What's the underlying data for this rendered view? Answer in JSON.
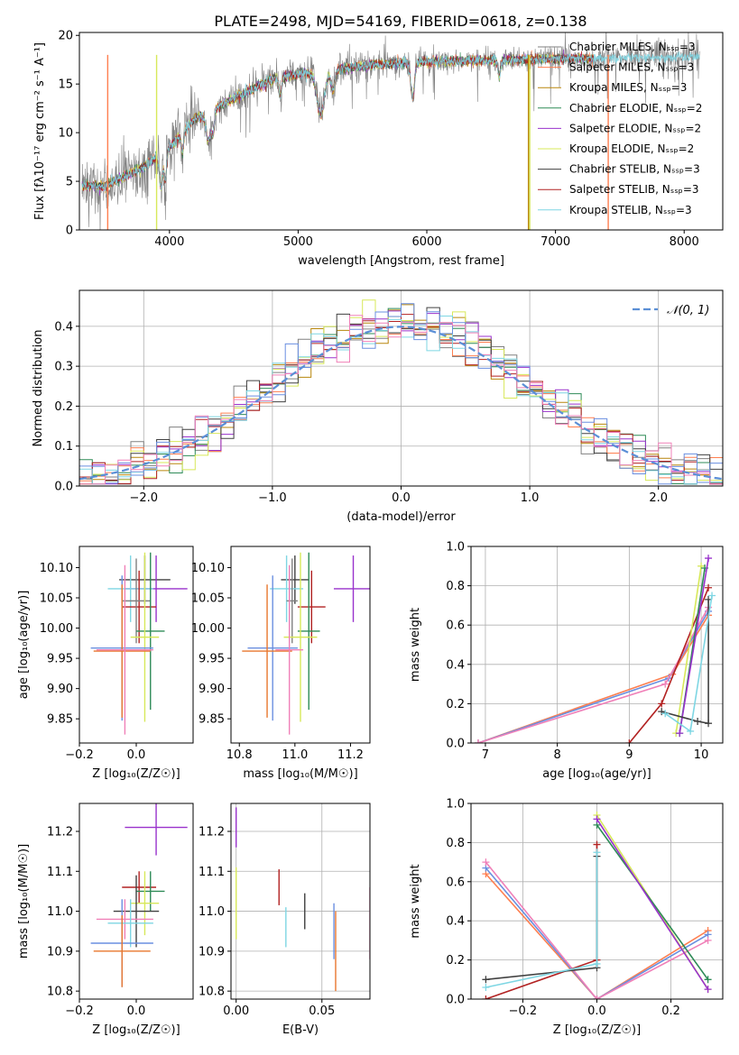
{
  "figure_title": "PLATE=2498, MJD=54169, FIBERID=0618, z=0.138",
  "colors": {
    "chabrier_miles": "#808080",
    "salpeter_miles": "#ff7f50",
    "kroupa_miles": "#b8860b",
    "chabrier_elodie": "#2e8b57",
    "salpeter_elodie": "#9932cc",
    "kroupa_elodie": "#d7e85a",
    "chabrier_stelib": "#404040",
    "salpeter_stelib": "#b22222",
    "kroupa_stelib": "#7ed6e3",
    "extra_blue": "#6a8fe0",
    "extra_orange": "#e8772e",
    "extra_pink": "#f080b8",
    "gaussian": "#5b8fd6"
  },
  "chart_data": [
    {
      "id": "spectrum",
      "type": "line",
      "title": "PLATE=2498, MJD=54169, FIBERID=0618, z=0.138",
      "xlabel": "wavelength [Angstrom, rest frame]",
      "ylabel": "Flux [fλ10⁻¹⁷ erg cm⁻² s⁻¹ A⁻¹]",
      "xlim": [
        3300,
        8300
      ],
      "ylim": [
        0,
        20.3
      ],
      "xticks": [
        4000,
        5000,
        6000,
        7000,
        8000
      ],
      "yticks": [
        0,
        5,
        10,
        15,
        20
      ],
      "legend_position": "top-right",
      "anchors": {
        "x": [
          3320,
          3500,
          3800,
          4000,
          4200,
          4500,
          4800,
          5000,
          5300,
          5600,
          6000,
          6500,
          7000,
          7500,
          8000,
          8100
        ],
        "y": [
          4.5,
          4.5,
          6.5,
          8.5,
          11.5,
          13.5,
          15.5,
          16.0,
          16.5,
          17.0,
          17.3,
          17.4,
          17.6,
          17.7,
          17.8,
          17.8
        ]
      },
      "series": [
        {
          "name": "Chabrier MILES, Nₛₛₚ=3",
          "color_key": "chabrier_miles"
        },
        {
          "name": "Salpeter MILES, Nₛₛₚ=3",
          "color_key": "salpeter_miles"
        },
        {
          "name": "Kroupa MILES, Nₛₛₚ=3",
          "color_key": "kroupa_miles"
        },
        {
          "name": "Chabrier ELODIE, Nₛₛₚ=2",
          "color_key": "chabrier_elodie"
        },
        {
          "name": "Salpeter ELODIE, Nₛₛₚ=2",
          "color_key": "salpeter_elodie"
        },
        {
          "name": "Kroupa ELODIE, Nₛₛₚ=2",
          "color_key": "kroupa_elodie"
        },
        {
          "name": "Chabrier STELIB, Nₛₛₚ=3",
          "color_key": "chabrier_stelib"
        },
        {
          "name": "Salpeter STELIB, Nₛₛₚ=3",
          "color_key": "salpeter_stelib"
        },
        {
          "name": "Kroupa STELIB, Nₛₛₚ=3",
          "color_key": "kroupa_stelib"
        }
      ],
      "vertical_lines": [
        {
          "x": 3520,
          "color_key": "salpeter_miles"
        },
        {
          "x": 3900,
          "color_key": "kroupa_elodie"
        },
        {
          "x": 6790,
          "color_key": "kroupa_miles"
        },
        {
          "x": 6800,
          "color_key": "kroupa_elodie"
        },
        {
          "x": 7410,
          "color_key": "salpeter_miles"
        }
      ]
    },
    {
      "id": "residuals",
      "type": "histogram",
      "xlabel": "(data-model)/error",
      "ylabel": "Normed distribution",
      "xlim": [
        -2.5,
        2.5
      ],
      "ylim": [
        0,
        0.49
      ],
      "xticks": [
        -2,
        -1,
        0,
        1,
        2
      ],
      "yticks": [
        0.0,
        0.1,
        0.2,
        0.3,
        0.4
      ],
      "bin_width": 0.1,
      "gaussian_label": "𝒩(0, 1)",
      "legend_position": "top-right",
      "grid": true
    },
    {
      "id": "age_vs_Z",
      "type": "errorbar",
      "xlabel": "Z [log₁₀(Z/Z☉)]",
      "ylabel": "age  [log₁₀(age/yr)]",
      "xlim": [
        -0.2,
        0.2
      ],
      "ylim": [
        9.81,
        10.135
      ],
      "xticks": [
        -0.2,
        0.0
      ],
      "yticks": [
        9.85,
        9.9,
        9.95,
        10.0,
        10.05,
        10.1
      ],
      "points": [
        {
          "x": 0.03,
          "xerr": 0.09,
          "y": 10.08,
          "yerr": 0.04,
          "color_key": "chabrier_stelib"
        },
        {
          "x": 0.07,
          "xerr": 0.11,
          "y": 10.065,
          "yerr": 0.055,
          "color_key": "salpeter_elodie"
        },
        {
          "x": -0.02,
          "xerr": 0.08,
          "y": 10.065,
          "yerr": 0.055,
          "color_key": "kroupa_stelib"
        },
        {
          "x": 0.01,
          "xerr": 0.06,
          "y": 10.035,
          "yerr": 0.06,
          "color_key": "salpeter_stelib"
        },
        {
          "x": 0.0,
          "xerr": 0.05,
          "y": 10.045,
          "yerr": 0.07,
          "color_key": "chabrier_miles"
        },
        {
          "x": 0.05,
          "xerr": 0.05,
          "y": 9.995,
          "yerr": 0.13,
          "color_key": "chabrier_elodie"
        },
        {
          "x": 0.03,
          "xerr": 0.05,
          "y": 9.985,
          "yerr": 0.14,
          "color_key": "kroupa_elodie"
        },
        {
          "x": -0.05,
          "xerr": 0.11,
          "y": 9.967,
          "yerr": 0.12,
          "color_key": "extra_blue"
        },
        {
          "x": -0.05,
          "xerr": 0.1,
          "y": 9.962,
          "yerr": 0.11,
          "color_key": "extra_orange"
        },
        {
          "x": -0.04,
          "xerr": 0.1,
          "y": 9.964,
          "yerr": 0.14,
          "color_key": "extra_pink"
        }
      ]
    },
    {
      "id": "age_vs_mass",
      "type": "errorbar",
      "xlabel": "mass [log₁₀(M/M☉)]",
      "ylabel": "",
      "xlim": [
        10.77,
        11.27
      ],
      "ylim": [
        9.81,
        10.135
      ],
      "xticks": [
        10.8,
        11.0,
        11.2
      ],
      "yticks": [
        9.85,
        9.9,
        9.95,
        10.0,
        10.05,
        10.1
      ],
      "points": [
        {
          "x": 11.0,
          "xerr": 0.05,
          "y": 10.08,
          "yerr": 0.04,
          "color_key": "chabrier_stelib"
        },
        {
          "x": 11.21,
          "xerr": 0.07,
          "y": 10.065,
          "yerr": 0.055,
          "color_key": "salpeter_elodie"
        },
        {
          "x": 10.97,
          "xerr": 0.06,
          "y": 10.065,
          "yerr": 0.055,
          "color_key": "kroupa_stelib"
        },
        {
          "x": 11.06,
          "xerr": 0.05,
          "y": 10.035,
          "yerr": 0.06,
          "color_key": "salpeter_stelib"
        },
        {
          "x": 10.99,
          "xerr": 0.02,
          "y": 10.045,
          "yerr": 0.07,
          "color_key": "chabrier_miles"
        },
        {
          "x": 11.05,
          "xerr": 0.04,
          "y": 9.995,
          "yerr": 0.13,
          "color_key": "chabrier_elodie"
        },
        {
          "x": 11.02,
          "xerr": 0.06,
          "y": 9.985,
          "yerr": 0.14,
          "color_key": "kroupa_elodie"
        },
        {
          "x": 10.92,
          "xerr": 0.09,
          "y": 9.967,
          "yerr": 0.12,
          "color_key": "extra_blue"
        },
        {
          "x": 10.9,
          "xerr": 0.09,
          "y": 9.962,
          "yerr": 0.11,
          "color_key": "extra_orange"
        },
        {
          "x": 10.98,
          "xerr": 0.05,
          "y": 9.964,
          "yerr": 0.14,
          "color_key": "extra_pink"
        }
      ]
    },
    {
      "id": "weight_vs_age",
      "type": "line",
      "xlabel": "age  [log₁₀(age/yr)]",
      "ylabel": "mass weight",
      "xlim": [
        6.8,
        10.3
      ],
      "ylim": [
        0,
        1.0
      ],
      "xticks": [
        7,
        8,
        9,
        10
      ],
      "yticks": [
        0.0,
        0.2,
        0.4,
        0.6,
        0.8,
        1.0
      ],
      "grid": true,
      "series": [
        {
          "color_key": "salpeter_miles",
          "x": [
            6.9,
            9.6,
            10.1
          ],
          "y": [
            0.0,
            0.35,
            0.65
          ]
        },
        {
          "color_key": "extra_blue",
          "x": [
            6.9,
            9.55,
            10.1
          ],
          "y": [
            0.0,
            0.33,
            0.67
          ]
        },
        {
          "color_key": "extra_pink",
          "x": [
            6.9,
            9.5,
            10.1
          ],
          "y": [
            0.0,
            0.3,
            0.69
          ]
        },
        {
          "color_key": "salpeter_stelib",
          "x": [
            9.0,
            9.45,
            10.1
          ],
          "y": [
            0.0,
            0.2,
            0.79
          ]
        },
        {
          "color_key": "kroupa_elodie",
          "x": [
            9.65,
            10.0
          ],
          "y": [
            0.05,
            0.9
          ]
        },
        {
          "color_key": "chabrier_elodie",
          "x": [
            9.7,
            10.05
          ],
          "y": [
            0.05,
            0.89
          ]
        },
        {
          "color_key": "salpeter_elodie",
          "x": [
            9.7,
            10.1
          ],
          "y": [
            0.05,
            0.94
          ]
        },
        {
          "color_key": "chabrier_stelib",
          "x": [
            9.45,
            9.95,
            10.1,
            10.1
          ],
          "y": [
            0.16,
            0.11,
            0.1,
            0.73
          ]
        },
        {
          "color_key": "kroupa_stelib",
          "x": [
            9.5,
            9.85,
            10.15
          ],
          "y": [
            0.15,
            0.06,
            0.75
          ]
        }
      ]
    },
    {
      "id": "mass_vs_Z",
      "type": "errorbar",
      "xlabel": "Z [log₁₀(Z/Z☉)]",
      "ylabel": "mass [log₁₀(M/M☉)]",
      "xlim": [
        -0.2,
        0.2
      ],
      "ylim": [
        10.78,
        11.27
      ],
      "xticks": [
        -0.2,
        0.0
      ],
      "yticks": [
        10.8,
        10.9,
        11.0,
        11.1,
        11.2
      ],
      "points": [
        {
          "x": 0.07,
          "xerr": 0.11,
          "y": 11.21,
          "yerr": 0.07,
          "color_key": "salpeter_elodie"
        },
        {
          "x": 0.01,
          "xerr": 0.06,
          "y": 11.06,
          "yerr": 0.04,
          "color_key": "salpeter_stelib"
        },
        {
          "x": 0.05,
          "xerr": 0.05,
          "y": 11.05,
          "yerr": 0.05,
          "color_key": "chabrier_elodie"
        },
        {
          "x": 0.03,
          "xerr": 0.05,
          "y": 11.02,
          "yerr": 0.08,
          "color_key": "kroupa_elodie"
        },
        {
          "x": 0.0,
          "xerr": 0.08,
          "y": 11.0,
          "yerr": 0.09,
          "color_key": "chabrier_stelib"
        },
        {
          "x": -0.04,
          "xerr": 0.1,
          "y": 10.98,
          "yerr": 0.05,
          "color_key": "extra_pink"
        },
        {
          "x": -0.02,
          "xerr": 0.08,
          "y": 10.97,
          "yerr": 0.06,
          "color_key": "kroupa_stelib"
        },
        {
          "x": -0.05,
          "xerr": 0.11,
          "y": 10.92,
          "yerr": 0.11,
          "color_key": "extra_blue"
        },
        {
          "x": -0.05,
          "xerr": 0.1,
          "y": 10.9,
          "yerr": 0.09,
          "color_key": "extra_orange"
        }
      ]
    },
    {
      "id": "mass_vs_ebv",
      "type": "errorbar",
      "xlabel": "E(B-V)",
      "ylabel": "",
      "xlim": [
        -0.003,
        0.078
      ],
      "ylim": [
        10.78,
        11.27
      ],
      "xticks": [
        0.0,
        0.05
      ],
      "yticks": [
        10.8,
        10.9,
        11.0,
        11.1,
        11.2
      ],
      "grid": true,
      "points": [
        {
          "x": 0.0,
          "y": 11.21,
          "yerr": 0.05,
          "color_key": "salpeter_elodie"
        },
        {
          "x": 0.0,
          "y": 11.02,
          "yerr": 0.09,
          "color_key": "kroupa_elodie"
        },
        {
          "x": 0.025,
          "y": 11.06,
          "yerr": 0.045,
          "color_key": "salpeter_stelib"
        },
        {
          "x": 0.029,
          "y": 10.96,
          "yerr": 0.05,
          "color_key": "kroupa_stelib"
        },
        {
          "x": 0.04,
          "y": 11.0,
          "yerr": 0.045,
          "color_key": "chabrier_stelib"
        },
        {
          "x": 0.057,
          "y": 10.95,
          "yerr": 0.07,
          "color_key": "extra_blue"
        },
        {
          "x": 0.058,
          "y": 10.9,
          "yerr": 0.1,
          "color_key": "extra_orange"
        },
        {
          "x": 0.078,
          "y": 10.97,
          "yerr": 0.09,
          "color_key": "extra_pink"
        }
      ]
    },
    {
      "id": "weight_vs_Z",
      "type": "line",
      "xlabel": "Z [log₁₀(Z/Z☉)]",
      "ylabel": "mass weight",
      "xlim": [
        -0.34,
        0.34
      ],
      "ylim": [
        0,
        1.0
      ],
      "xticks": [
        -0.2,
        0.0,
        0.2
      ],
      "yticks": [
        0.0,
        0.2,
        0.4,
        0.6,
        0.8,
        1.0
      ],
      "grid": true,
      "series": [
        {
          "color_key": "salpeter_miles",
          "x": [
            -0.3,
            0.0,
            0.3
          ],
          "y": [
            0.64,
            0.0,
            0.35
          ]
        },
        {
          "color_key": "extra_blue",
          "x": [
            -0.3,
            0.0,
            0.3
          ],
          "y": [
            0.67,
            0.0,
            0.33
          ]
        },
        {
          "color_key": "extra_pink",
          "x": [
            -0.3,
            0.0,
            0.3
          ],
          "y": [
            0.7,
            0.0,
            0.3
          ]
        },
        {
          "color_key": "salpeter_stelib",
          "x": [
            -0.3,
            0.0,
            0.0
          ],
          "y": [
            0.0,
            0.2,
            0.79
          ]
        },
        {
          "color_key": "chabrier_stelib",
          "x": [
            -0.3,
            0.0,
            0.0
          ],
          "y": [
            0.1,
            0.16,
            0.73
          ]
        },
        {
          "color_key": "kroupa_stelib",
          "x": [
            -0.3,
            0.0,
            0.0
          ],
          "y": [
            0.06,
            0.18,
            0.75
          ]
        },
        {
          "color_key": "kroupa_elodie",
          "x": [
            0.0,
            0.3
          ],
          "y": [
            0.94,
            0.05
          ]
        },
        {
          "color_key": "chabrier_elodie",
          "x": [
            0.0,
            0.3
          ],
          "y": [
            0.89,
            0.1
          ]
        },
        {
          "color_key": "salpeter_elodie",
          "x": [
            0.0,
            0.3
          ],
          "y": [
            0.92,
            0.05
          ]
        }
      ]
    }
  ]
}
